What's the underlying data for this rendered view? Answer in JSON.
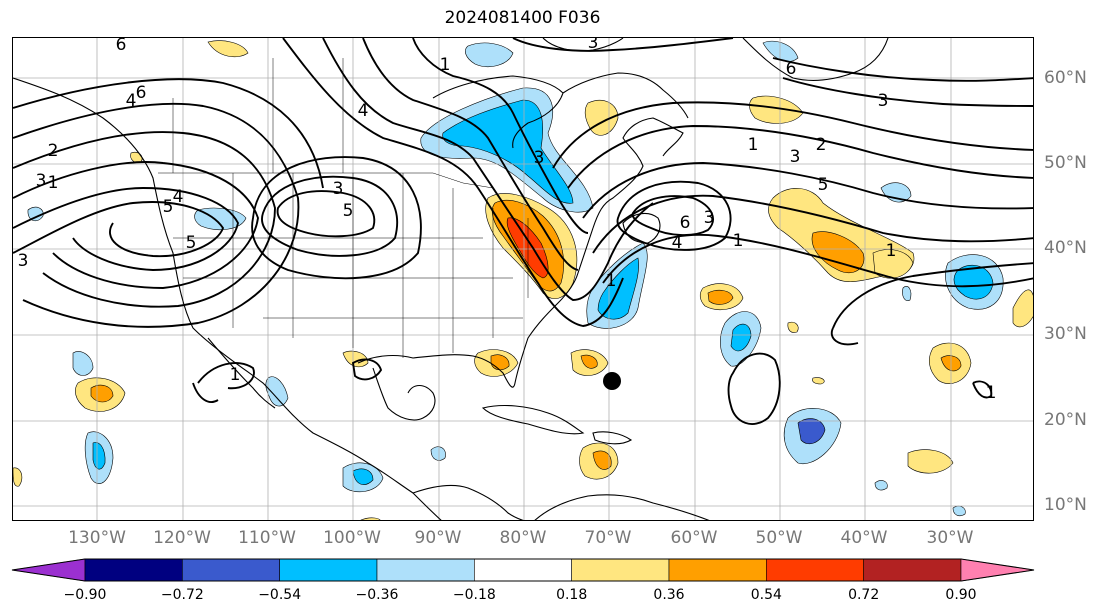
{
  "title": "2024081400 F036",
  "lat_labels": [
    "60°N",
    "50°N",
    "40°N",
    "30°N",
    "20°N",
    "10°N"
  ],
  "lon_labels": [
    "130°W",
    "120°W",
    "110°W",
    "100°W",
    "90°W",
    "80°W",
    "70°W",
    "60°W",
    "50°W",
    "40°W",
    "30°W"
  ],
  "colorbar": {
    "ticks": [
      "−0.90",
      "−0.72",
      "−0.54",
      "−0.36",
      "−0.18",
      "0.18",
      "0.36",
      "0.54",
      "0.72",
      "0.90"
    ],
    "colors": [
      "#9b30d0",
      "#000080",
      "#3a5acd",
      "#00bfff",
      "#aee0fa",
      "#ffffff",
      "#ffe680",
      "#ff9f00",
      "#ff3c00",
      "#b22222",
      "#ff80b0"
    ]
  },
  "contour_labels": [
    "6",
    "4",
    "1",
    "3",
    "2",
    "1",
    "3",
    "5",
    "4",
    "3",
    "6",
    "3",
    "2",
    "1",
    "3",
    "5",
    "1",
    "3",
    "5",
    "1",
    "6",
    "4",
    "3",
    "1",
    "4",
    "6",
    "5",
    "1",
    "3",
    "1"
  ],
  "markers": [
    {
      "name": "storm-center-marker",
      "lon": -70,
      "lat": 24.5
    }
  ]
}
